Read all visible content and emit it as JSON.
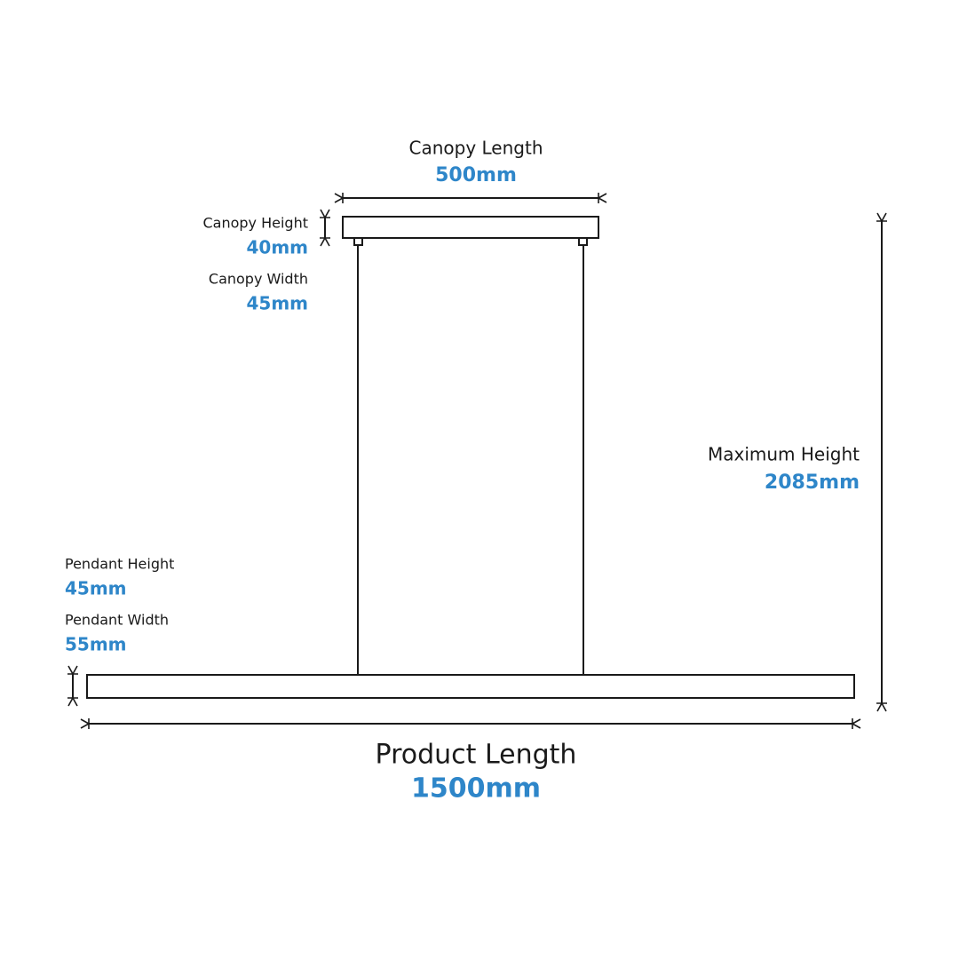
{
  "dimensions": {
    "canopy_length": {
      "label": "Canopy Length",
      "value": "500mm"
    },
    "canopy_height": {
      "label": "Canopy Height",
      "value": "40mm"
    },
    "canopy_width": {
      "label": "Canopy Width",
      "value": "45mm"
    },
    "maximum_height": {
      "label": "Maximum Height",
      "value": "2085mm"
    },
    "pendant_height": {
      "label": "Pendant Height",
      "value": "45mm"
    },
    "pendant_width": {
      "label": "Pendant Width",
      "value": "55mm"
    },
    "product_length": {
      "label": "Product Length",
      "value": "1500mm"
    }
  }
}
